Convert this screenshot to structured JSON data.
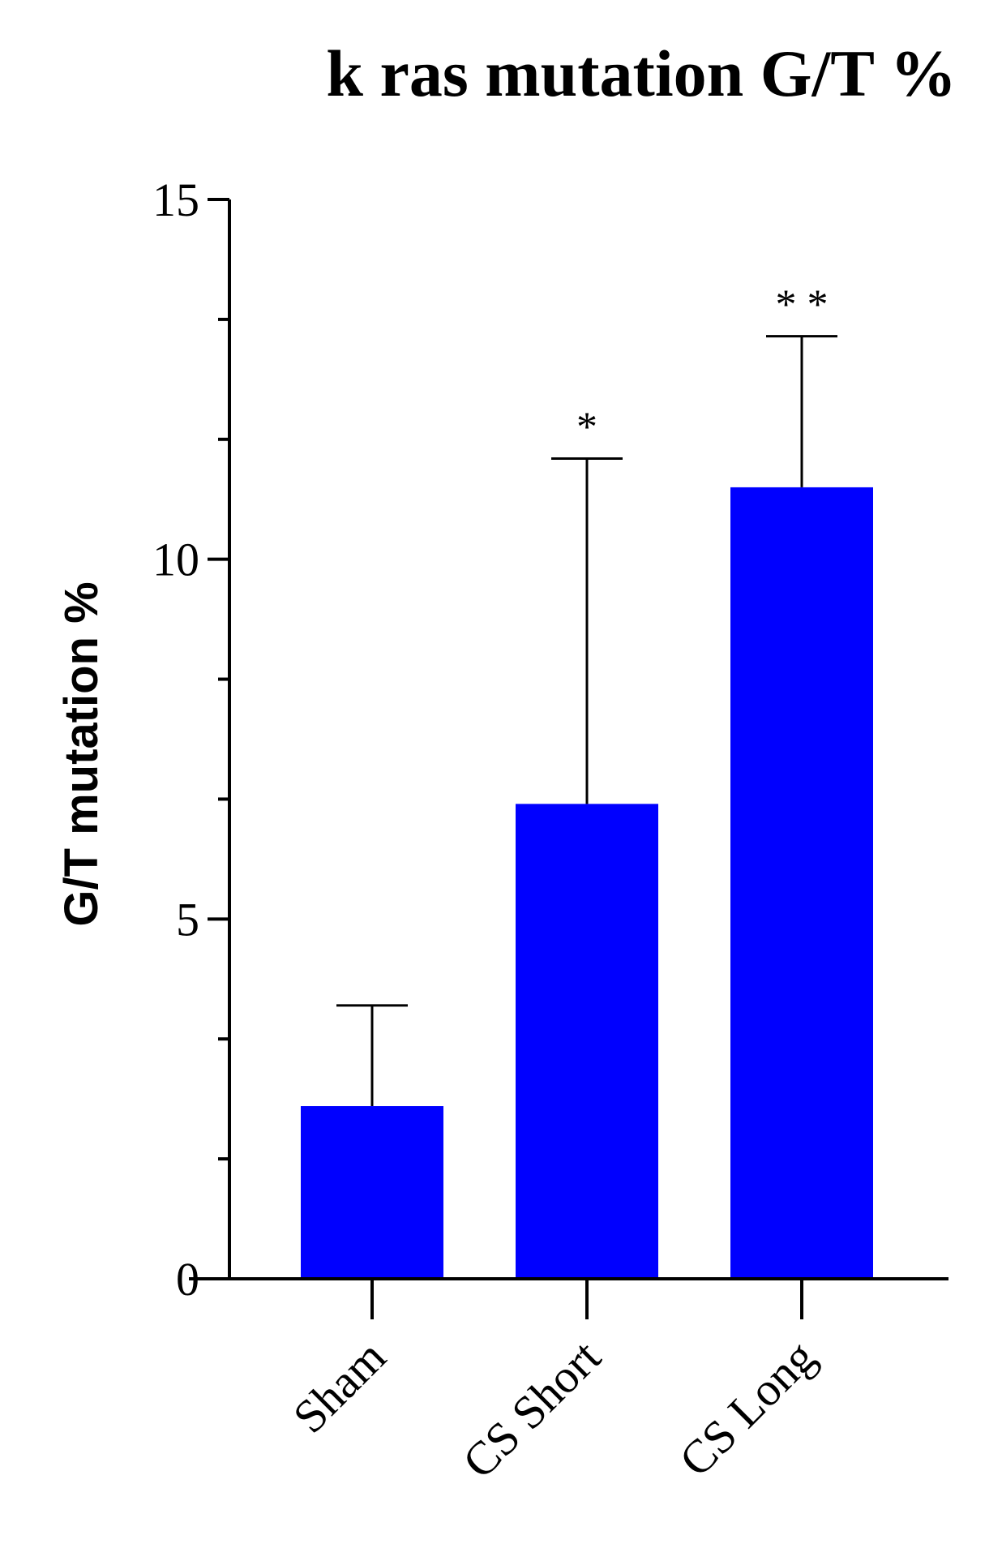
{
  "chart_data": {
    "type": "bar",
    "title": "k ras mutation G/T %",
    "ylabel": "G/T mutation %",
    "xlabel": "",
    "categories": [
      "Sham",
      "CS Short",
      "CS Long"
    ],
    "values": [
      2.4,
      6.6,
      11.0
    ],
    "error_upper": [
      3.8,
      11.4,
      13.1
    ],
    "significance": [
      "",
      "*",
      "* *"
    ],
    "ylim": [
      0,
      15
    ],
    "yticks": [
      0,
      5,
      10,
      15
    ],
    "ytick_labels": [
      "0",
      "5",
      "10",
      "15"
    ],
    "bar_color": "#0000ff",
    "grid": false,
    "legend": "none"
  }
}
